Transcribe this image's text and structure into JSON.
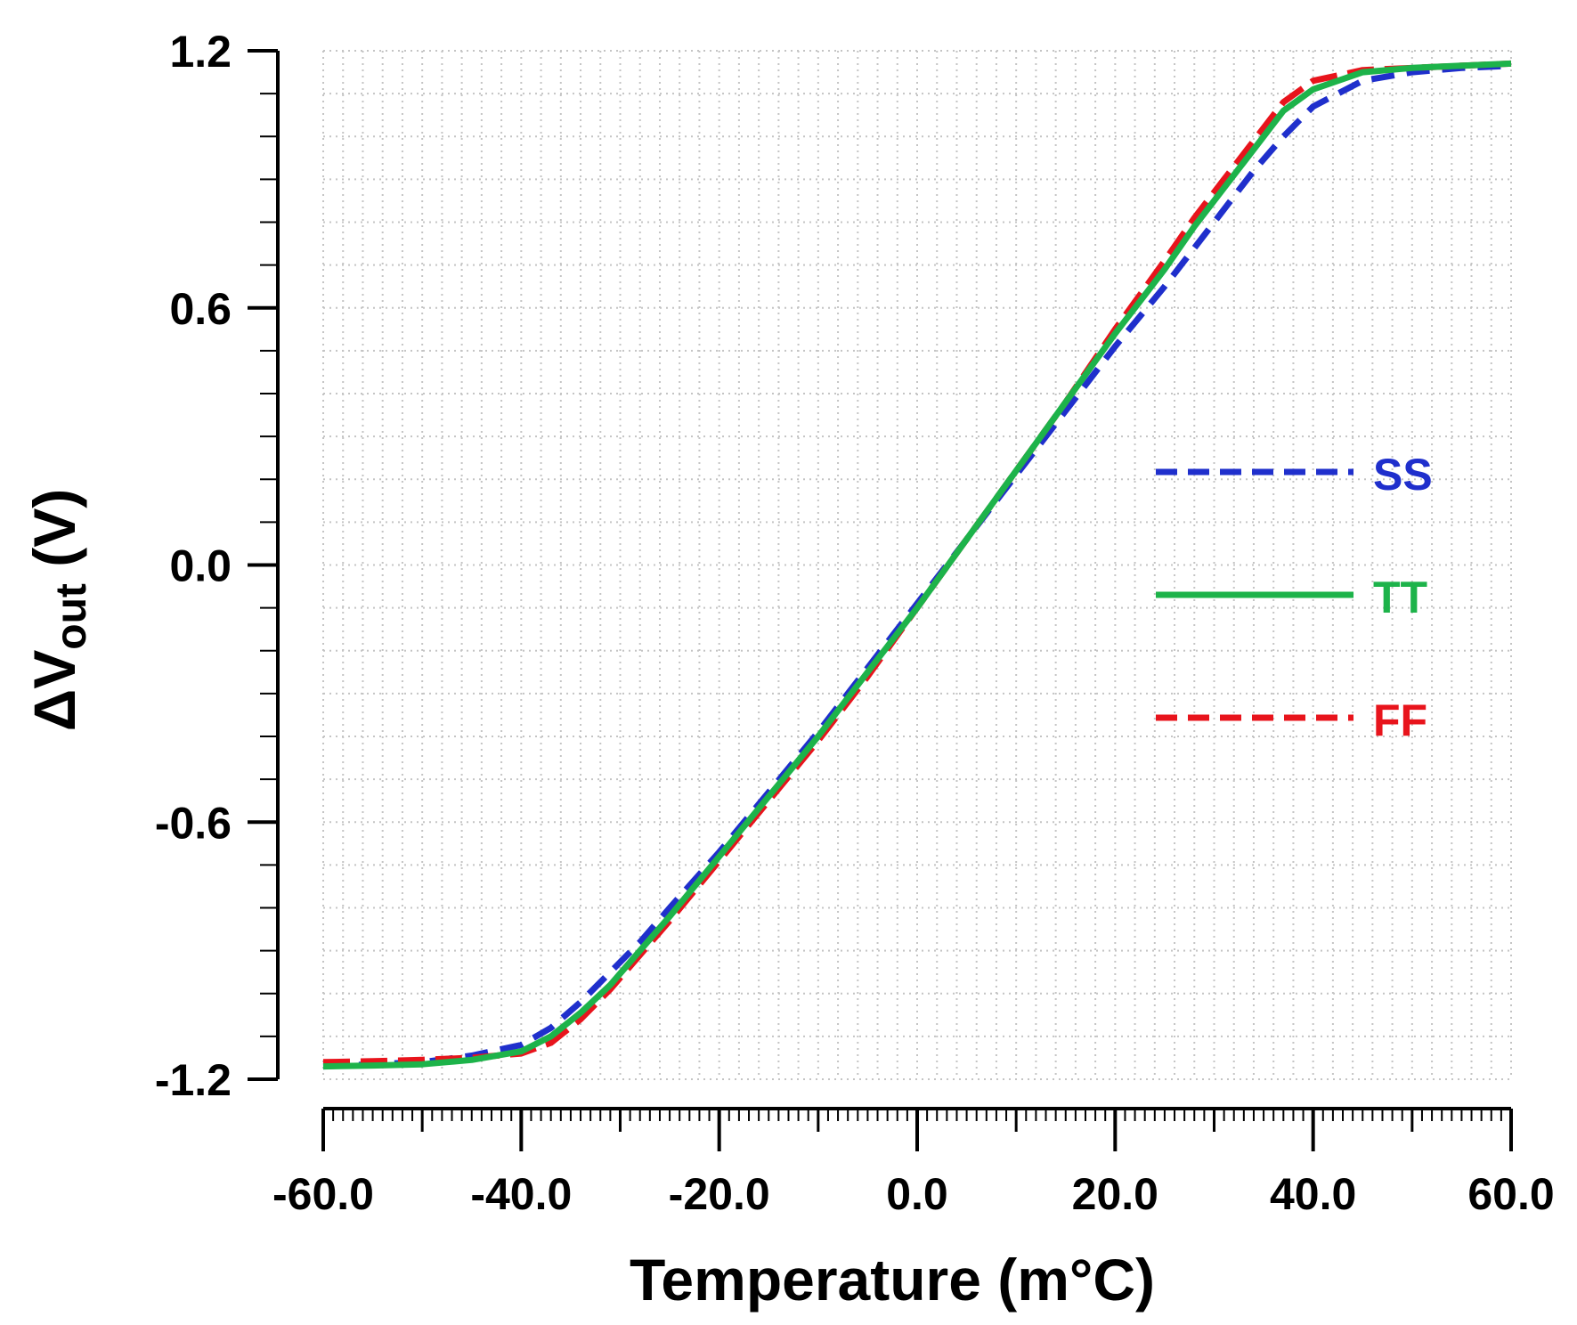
{
  "chart_data": {
    "type": "line",
    "title": "",
    "xlabel": "Temperature (m°C)",
    "ylabel_main": "ΔV",
    "ylabel_sub": "out",
    "ylabel_unit": " (V)",
    "xlim": [
      -60,
      60
    ],
    "ylim": [
      -1.2,
      1.2
    ],
    "x_ticks": [
      -60,
      -40,
      -20,
      0,
      20,
      40,
      60
    ],
    "x_tick_labels": [
      "-60.0",
      "-40.0",
      "-20.0",
      "0.0",
      "20.0",
      "40.0",
      "60.0"
    ],
    "y_ticks": [
      1.2,
      0.6,
      0.0,
      -0.6,
      -1.2
    ],
    "y_tick_labels": [
      "1.2",
      "0.6",
      "0.0",
      "-0.6",
      "-1.2"
    ],
    "grid": true,
    "legend_position": "right-center",
    "x": [
      -60,
      -55,
      -50,
      -45,
      -40,
      -37,
      -34,
      -31,
      -28,
      -25,
      -20,
      -15,
      -10,
      -5,
      0,
      5,
      10,
      15,
      20,
      25,
      28,
      31,
      34,
      37,
      40,
      45,
      50,
      55,
      60
    ],
    "series": [
      {
        "name": "SS",
        "color": "#1f2fcc",
        "style": "dashed",
        "values": [
          -1.17,
          -1.165,
          -1.16,
          -1.145,
          -1.12,
          -1.08,
          -1.02,
          -0.95,
          -0.88,
          -0.8,
          -0.67,
          -0.53,
          -0.39,
          -0.24,
          -0.09,
          0.06,
          0.21,
          0.36,
          0.51,
          0.65,
          0.74,
          0.83,
          0.92,
          1.0,
          1.07,
          1.13,
          1.15,
          1.16,
          1.165
        ]
      },
      {
        "name": "TT",
        "color": "#1db34a",
        "style": "solid",
        "values": [
          -1.17,
          -1.168,
          -1.165,
          -1.155,
          -1.135,
          -1.1,
          -1.045,
          -0.98,
          -0.9,
          -0.82,
          -0.68,
          -0.54,
          -0.4,
          -0.25,
          -0.1,
          0.06,
          0.22,
          0.38,
          0.54,
          0.69,
          0.79,
          0.88,
          0.97,
          1.06,
          1.11,
          1.15,
          1.16,
          1.165,
          1.17
        ]
      },
      {
        "name": "FF",
        "color": "#e8141c",
        "style": "dashed",
        "values": [
          -1.16,
          -1.158,
          -1.155,
          -1.15,
          -1.14,
          -1.115,
          -1.06,
          -0.99,
          -0.91,
          -0.83,
          -0.69,
          -0.55,
          -0.41,
          -0.26,
          -0.1,
          0.06,
          0.22,
          0.38,
          0.55,
          0.71,
          0.81,
          0.9,
          0.99,
          1.08,
          1.13,
          1.155,
          1.16,
          1.165,
          1.17
        ]
      }
    ]
  }
}
